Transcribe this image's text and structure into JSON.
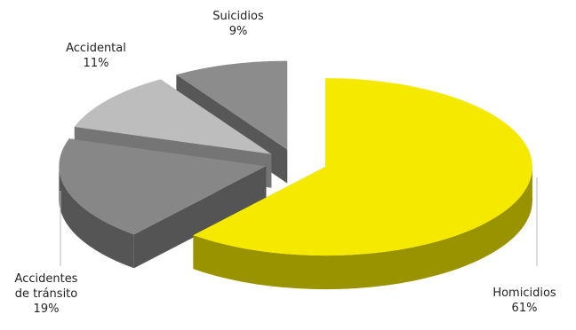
{
  "chart_data": {
    "type": "pie3d",
    "categories": [
      "Homicidios",
      "Accidentes de tránsito",
      "Accidental",
      "Suicidios"
    ],
    "values": [
      61,
      19,
      11,
      9
    ],
    "value_labels": [
      "61%",
      "19%",
      "11%",
      "9%"
    ],
    "colors": [
      "#f5e900",
      "#878787",
      "#bdbdbd",
      "#8c8c8c"
    ]
  }
}
